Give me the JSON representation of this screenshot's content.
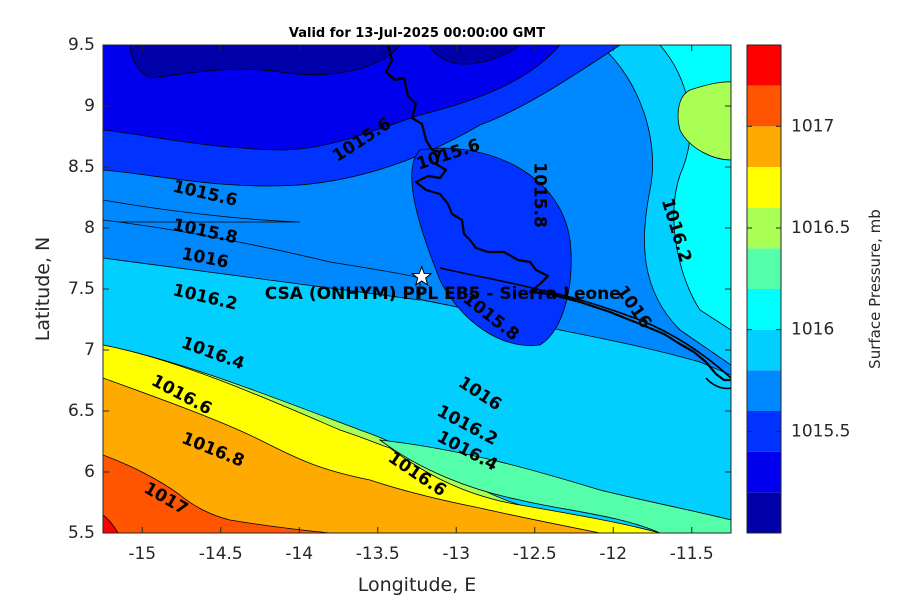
{
  "chart_data": {
    "type": "contour",
    "title": "Valid for 13-Jul-2025 00:00:00 GMT",
    "xlabel": "Longitude, E",
    "ylabel": "Latitude, N",
    "xlim": [
      -15.25,
      -11.25
    ],
    "ylim": [
      5.5,
      9.5
    ],
    "xticks": [
      -15,
      -14.5,
      -14,
      -13.5,
      -13,
      -12.5,
      -12,
      -11.5
    ],
    "xtick_labels": [
      "-15",
      "-14.5",
      "-14",
      "-13.5",
      "-13",
      "-12.5",
      "-12",
      "-11.5"
    ],
    "yticks": [
      5.5,
      6,
      6.5,
      7,
      7.5,
      8,
      8.5,
      9,
      9.5
    ],
    "ytick_labels": [
      "5.5",
      "6",
      "6.5",
      "7",
      "7.5",
      "8",
      "8.5",
      "9",
      "9.5"
    ],
    "contour_levels": [
      1015.2,
      1015.4,
      1015.6,
      1015.8,
      1016.0,
      1016.2,
      1016.4,
      1016.6,
      1016.8,
      1017.0,
      1017.2
    ],
    "contour_labels": [
      {
        "text": "1015.6",
        "lon": -14.6,
        "lat": 8.28,
        "rot": 13
      },
      {
        "text": "1015.8",
        "lon": -14.6,
        "lat": 7.97,
        "rot": 12
      },
      {
        "text": "1016",
        "lon": -14.6,
        "lat": 7.75,
        "rot": 11
      },
      {
        "text": "1016.2",
        "lon": -14.6,
        "lat": 7.43,
        "rot": 13
      },
      {
        "text": "1016.4",
        "lon": -14.55,
        "lat": 6.97,
        "rot": 20
      },
      {
        "text": "1016.6",
        "lon": -14.75,
        "lat": 6.63,
        "rot": 28
      },
      {
        "text": "1016.8",
        "lon": -14.55,
        "lat": 6.18,
        "rot": 22
      },
      {
        "text": "1017",
        "lon": -14.85,
        "lat": 5.78,
        "rot": 30
      },
      {
        "text": "1015.6",
        "lon": -13.6,
        "lat": 8.72,
        "rot": -33
      },
      {
        "text": "1015.6",
        "lon": -13.05,
        "lat": 8.6,
        "rot": -18
      },
      {
        "text": "1015.8",
        "lon": -12.47,
        "lat": 8.27,
        "rot": 90
      },
      {
        "text": "1015.8",
        "lon": -12.78,
        "lat": 7.27,
        "rot": 38
      },
      {
        "text": "1016",
        "lon": -12.85,
        "lat": 6.64,
        "rot": 33
      },
      {
        "text": "1016.2",
        "lon": -12.93,
        "lat": 6.38,
        "rot": 28
      },
      {
        "text": "1016.4",
        "lon": -12.93,
        "lat": 6.17,
        "rot": 28
      },
      {
        "text": "1016.6",
        "lon": -13.25,
        "lat": 5.98,
        "rot": 34
      },
      {
        "text": "1016.2",
        "lon": -11.6,
        "lat": 7.98,
        "rot": 73
      },
      {
        "text": "1016",
        "lon": -11.87,
        "lat": 7.35,
        "rot": 55
      }
    ],
    "marker": {
      "type": "star",
      "lon": -13.22,
      "lat": 7.6
    },
    "annotation": {
      "text": "CSA (ONHYM) PPL EB5  - Sierra Leone",
      "lon": -14.22,
      "lat": 7.46
    },
    "colorbar": {
      "label": "Surface Pressure, mb",
      "levels": [
        1015.2,
        1015.4,
        1015.6,
        1015.8,
        1016.0,
        1016.2,
        1016.4,
        1016.6,
        1016.8,
        1017.0,
        1017.2,
        1017.4
      ],
      "colors": [
        "#0000aa",
        "#0000ee",
        "#0033ff",
        "#0088ff",
        "#00cfff",
        "#00ffff",
        "#55ffaa",
        "#aaff55",
        "#ffff00",
        "#ffaa00",
        "#ff5500",
        "#ff0000",
        "#aa0000"
      ],
      "tick_values": [
        1015.5,
        1016,
        1016.5,
        1017
      ],
      "tick_labels": [
        "1015.5",
        "1016",
        "1016.5",
        "1017"
      ]
    },
    "grid": false
  }
}
